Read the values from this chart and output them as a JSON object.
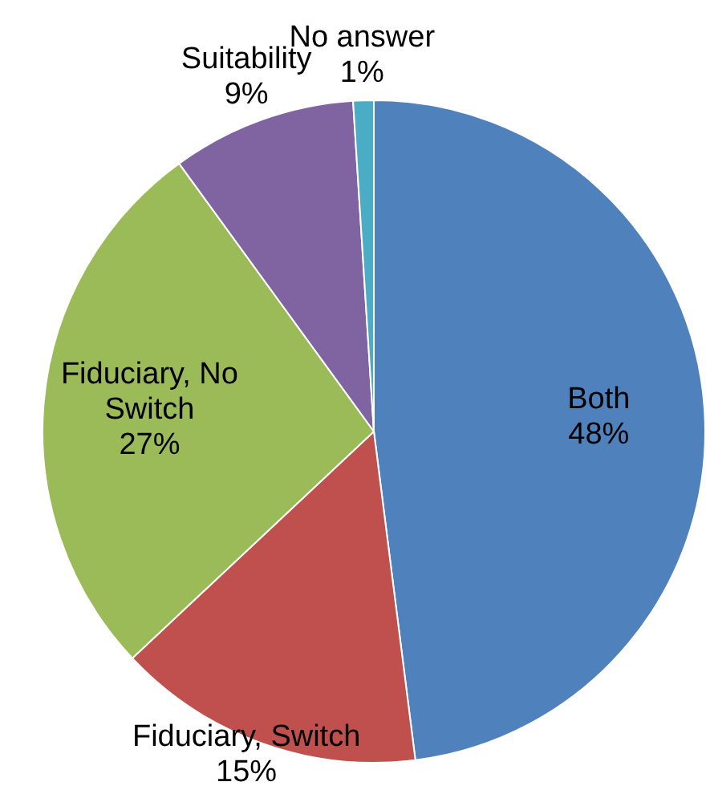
{
  "chart_data": {
    "type": "pie",
    "categories": [
      "Both",
      "Fiduciary, Switch",
      "Fiduciary, No Switch",
      "Suitability",
      "No answer"
    ],
    "values": [
      48,
      15,
      27,
      9,
      1
    ],
    "value_labels": [
      "48%",
      "15%",
      "27%",
      "9%",
      "1%"
    ],
    "colors": [
      "#4f81bd",
      "#c0504d",
      "#9bbb59",
      "#8064a2",
      "#4bacc6"
    ],
    "legend": false
  }
}
